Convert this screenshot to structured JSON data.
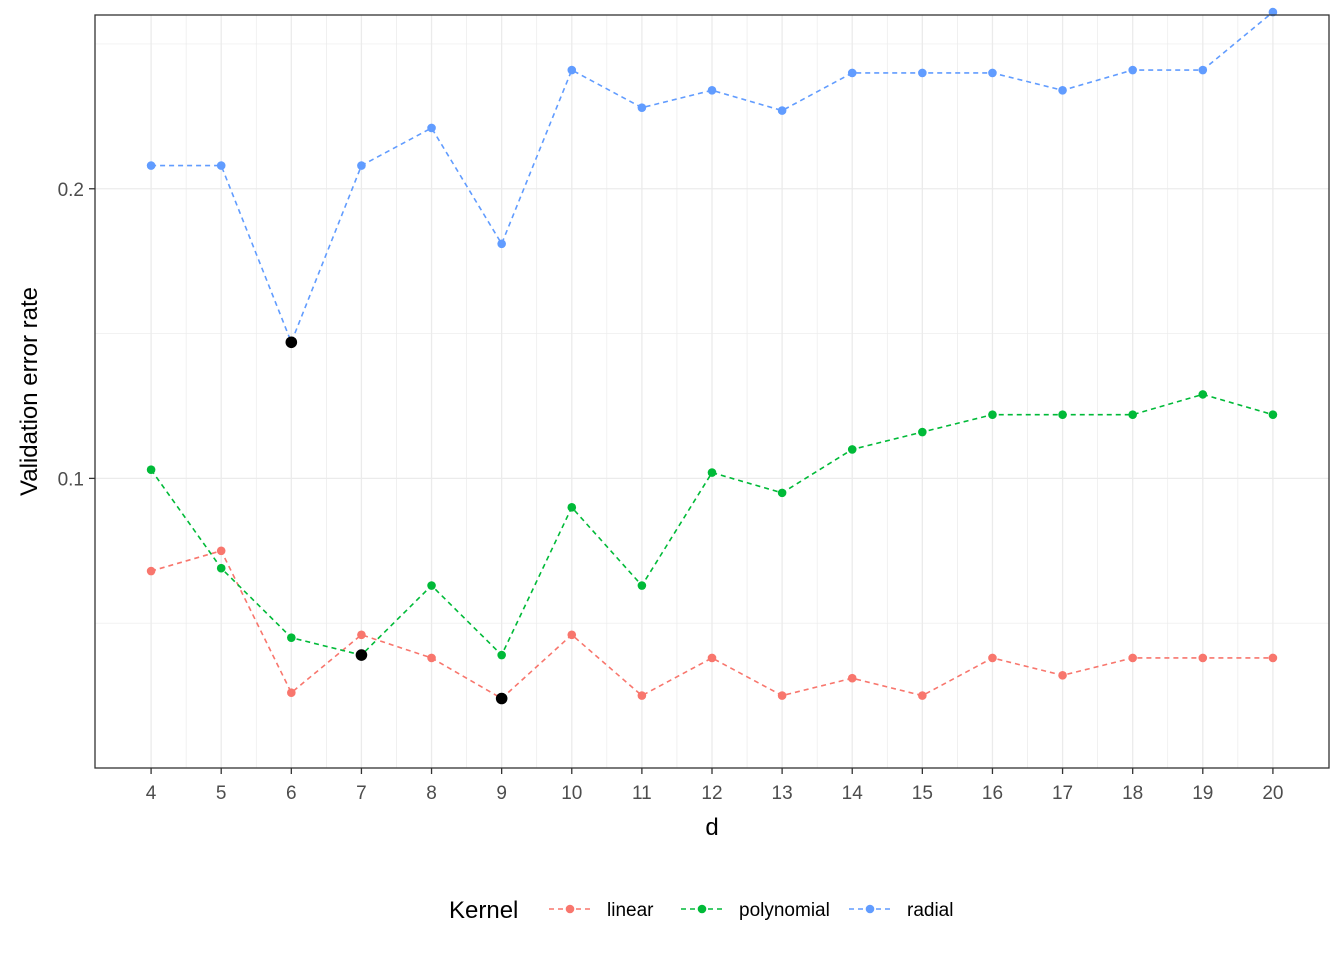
{
  "chart_data": {
    "type": "line",
    "title": "",
    "xlabel": "d",
    "ylabel": "Validation error rate",
    "x": [
      4,
      5,
      6,
      7,
      8,
      9,
      10,
      11,
      12,
      13,
      14,
      15,
      16,
      17,
      18,
      19,
      20
    ],
    "x_tick_labels": [
      "4",
      "5",
      "6",
      "7",
      "8",
      "9",
      "10",
      "11",
      "12",
      "13",
      "14",
      "15",
      "16",
      "17",
      "18",
      "19",
      "20"
    ],
    "y_tick_values": [
      0.1,
      0.2
    ],
    "y_tick_labels": [
      "0.1",
      "0.2"
    ],
    "xlim": [
      3.2,
      20.8
    ],
    "ylim": [
      0.0,
      0.26
    ],
    "grid": true,
    "legend_title": "Kernel",
    "legend_position": "bottom",
    "series": [
      {
        "name": "linear",
        "color": "#F8766D",
        "values": [
          0.068,
          0.075,
          0.026,
          0.046,
          0.038,
          0.024,
          0.046,
          0.025,
          0.038,
          0.025,
          0.031,
          0.025,
          0.038,
          0.032,
          0.038,
          0.038,
          0.038
        ]
      },
      {
        "name": "polynomial",
        "color": "#00BA38",
        "values": [
          0.103,
          0.069,
          0.045,
          0.039,
          0.063,
          0.039,
          0.09,
          0.063,
          0.102,
          0.095,
          0.11,
          0.116,
          0.122,
          0.122,
          0.122,
          0.129,
          0.122
        ]
      },
      {
        "name": "radial",
        "color": "#619CFF",
        "values": [
          0.208,
          0.208,
          0.147,
          0.208,
          0.221,
          0.181,
          0.241,
          0.228,
          0.234,
          0.227,
          0.24,
          0.24,
          0.24,
          0.234,
          0.241,
          0.241,
          0.261
        ]
      }
    ],
    "highlight_points": [
      {
        "series": "linear",
        "x": 9,
        "y": 0.024
      },
      {
        "series": "polynomial",
        "x": 7,
        "y": 0.039
      },
      {
        "series": "radial",
        "x": 6,
        "y": 0.147
      }
    ],
    "highlight_color": "#000000"
  }
}
